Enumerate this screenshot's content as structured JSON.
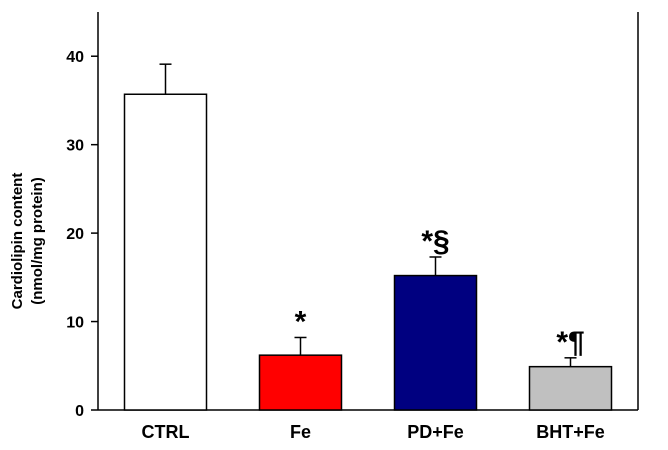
{
  "chart_data": {
    "type": "bar",
    "categories": [
      "CTRL",
      "Fe",
      "PD+Fe",
      "BHT+Fe"
    ],
    "values": [
      35.7,
      6.2,
      15.2,
      4.9
    ],
    "errors": [
      3.4,
      2.0,
      2.1,
      1.0
    ],
    "significance": [
      "",
      "*",
      "*§",
      "*¶"
    ],
    "colors": [
      "#ffffff",
      "#ff0000",
      "#000080",
      "#c0c0c0"
    ],
    "ylabel_lines": [
      "Cardiolipin content",
      "(nmol/mg protein)"
    ],
    "ylim": [
      0,
      45
    ],
    "yticks": [
      0,
      10,
      20,
      30,
      40
    ],
    "grid": false
  }
}
